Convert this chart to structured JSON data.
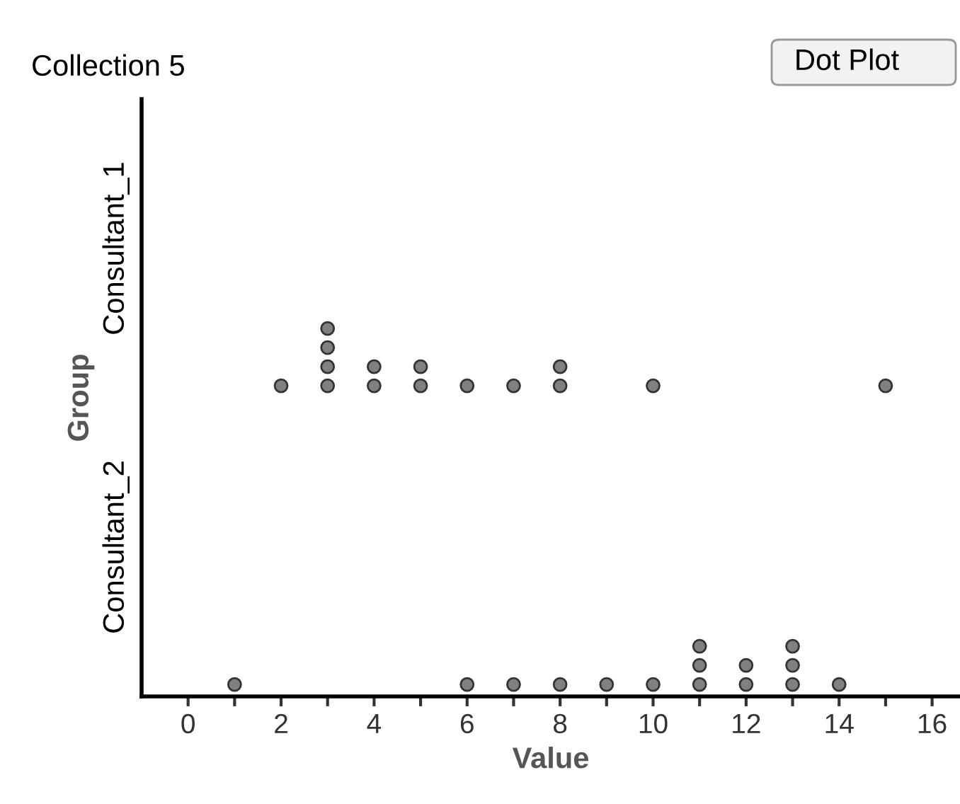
{
  "chart_data": {
    "type": "scatter",
    "orientation": "horizontal",
    "title": "Collection 5",
    "xlabel": "Value",
    "ylabel": "Group",
    "annotations": [
      "Dot Plot"
    ],
    "categories": [
      "Consultant_1",
      "Consultant_2"
    ],
    "xlim": [
      -1,
      16.6
    ],
    "xticks": [
      0,
      {
        "value": 1,
        "label": null
      },
      2,
      {
        "value": 3,
        "label": null
      },
      4,
      {
        "value": 5,
        "label": null
      },
      6,
      {
        "value": 7,
        "label": null
      },
      8,
      {
        "value": 9,
        "label": null
      },
      10,
      {
        "value": 11,
        "label": null
      },
      12,
      {
        "value": 13,
        "label": null
      },
      14,
      {
        "value": 15,
        "label": null
      },
      16
    ],
    "marker": "circle",
    "series": [
      {
        "color": "#808080",
        "x": [
          "Consultant_1",
          "Consultant_1",
          "Consultant_1",
          "Consultant_1",
          "Consultant_1",
          "Consultant_1",
          "Consultant_1",
          "Consultant_1",
          "Consultant_1",
          "Consultant_1",
          "Consultant_1",
          "Consultant_1",
          "Consultant_1",
          "Consultant_1",
          "Consultant_1"
        ],
        "values": [
          2,
          3,
          3,
          3,
          3,
          4,
          4,
          5,
          5,
          6,
          7,
          8,
          8,
          10,
          15
        ]
      },
      {
        "color": "#808080",
        "x": [
          "Consultant_2",
          "Consultant_2",
          "Consultant_2",
          "Consultant_2",
          "Consultant_2",
          "Consultant_2",
          "Consultant_2",
          "Consultant_2",
          "Consultant_2",
          "Consultant_2",
          "Consultant_2",
          "Consultant_2",
          "Consultant_2",
          "Consultant_2",
          "Consultant_2"
        ],
        "values": [
          1,
          6,
          7,
          8,
          9,
          10,
          11,
          11,
          11,
          12,
          12,
          13,
          13,
          13,
          14
        ]
      }
    ]
  }
}
